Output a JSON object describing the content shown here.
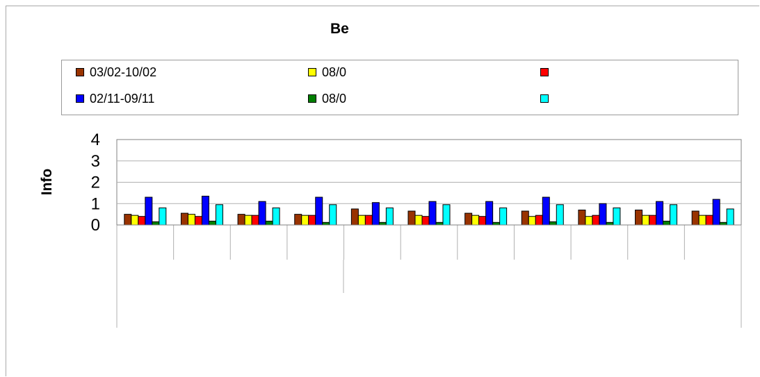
{
  "chart_data": {
    "type": "bar",
    "title": "Be",
    "ylabel": "Info",
    "ylim": [
      0,
      4
    ],
    "y_ticks": [
      "0",
      "1",
      "2",
      "3",
      "4"
    ],
    "grid": true,
    "legend_position": "top",
    "categories": [
      "",
      "",
      "",
      "",
      "",
      "",
      "",
      "",
      "",
      "",
      ""
    ],
    "series": [
      {
        "name": "03/02-10/02",
        "color": "#993300",
        "values": [
          0.5,
          0.55,
          0.5,
          0.5,
          0.75,
          0.65,
          0.55,
          0.65,
          0.7,
          0.7,
          0.65
        ]
      },
      {
        "name": "08/0",
        "color": "#ffff00",
        "values": [
          0.45,
          0.5,
          0.45,
          0.45,
          0.45,
          0.45,
          0.45,
          0.4,
          0.4,
          0.45,
          0.45
        ]
      },
      {
        "name": "",
        "color": "#ff0000",
        "values": [
          0.4,
          0.4,
          0.45,
          0.45,
          0.45,
          0.4,
          0.4,
          0.45,
          0.45,
          0.45,
          0.45
        ]
      },
      {
        "name": "02/11-09/11",
        "color": "#0000ff",
        "values": [
          1.3,
          1.35,
          1.1,
          1.3,
          1.05,
          1.1,
          1.1,
          1.3,
          1.0,
          1.1,
          1.2
        ]
      },
      {
        "name": "08/0",
        "color": "#007f00",
        "values": [
          0.15,
          0.18,
          0.18,
          0.12,
          0.12,
          0.12,
          0.12,
          0.15,
          0.12,
          0.18,
          0.12
        ]
      },
      {
        "name": "",
        "color": "#00ffff",
        "values": [
          0.8,
          0.95,
          0.8,
          0.95,
          0.8,
          0.95,
          0.8,
          0.95,
          0.8,
          0.95,
          0.75
        ]
      }
    ]
  }
}
